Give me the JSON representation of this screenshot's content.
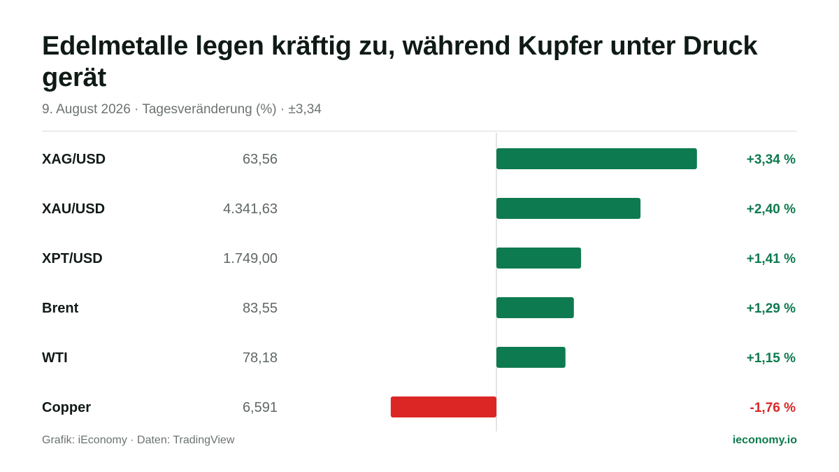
{
  "header": {
    "title": "Edelmetalle legen kräftig zu, während Kupfer unter Druck gerät",
    "subtitle": "9. August 2026 · Tagesveränderung (%) · ±3,34"
  },
  "footer": {
    "source": "Grafik: iEconomy · Daten: TradingView",
    "brand": "ieconomy.io"
  },
  "colors": {
    "positive": "#0e7a4f",
    "negative": "#dc2626",
    "label": "#111a16",
    "price": "#5f6764",
    "axis": "#d9dcdb"
  },
  "chart_data": {
    "type": "bar",
    "orientation": "horizontal",
    "categories": [
      "XAG/USD",
      "XAU/USD",
      "XPT/USD",
      "Brent",
      "WTI",
      "Copper"
    ],
    "prices": [
      "63,56",
      "4.341,63",
      "1.749,00",
      "83,55",
      "78,18",
      "6,591"
    ],
    "values": [
      3.34,
      2.4,
      1.41,
      1.29,
      1.15,
      -1.76
    ],
    "value_labels": [
      "+3,34 %",
      "+2,40 %",
      "+1,41 %",
      "+1,29 %",
      "+1,15 %",
      "-1,76 %"
    ],
    "xlim": [
      -3.34,
      3.34
    ],
    "grid": false,
    "legend": "none"
  }
}
